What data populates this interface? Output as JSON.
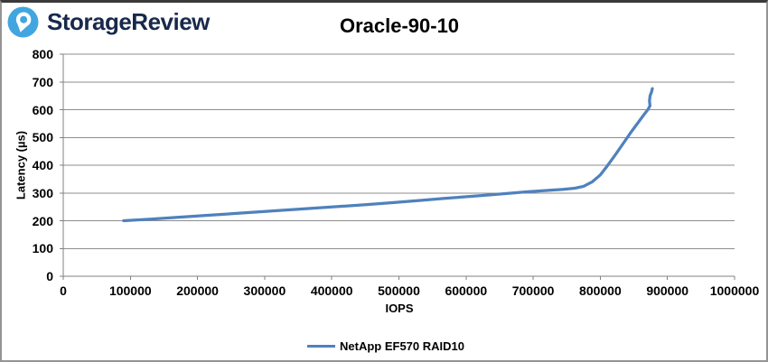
{
  "header": {
    "brand": "StorageReview",
    "brand_color": "#18294b",
    "logo_color": "#41a6e0"
  },
  "chart_data": {
    "type": "line",
    "title": "Oracle-90-10",
    "xlabel": "IOPS",
    "ylabel": "Latency (µs)",
    "xlim": [
      0,
      1000000
    ],
    "ylim": [
      0,
      800
    ],
    "x_tick_labels": [
      "0",
      "100000",
      "200000",
      "300000",
      "400000",
      "500000",
      "600000",
      "700000",
      "800000",
      "900000",
      "1000000"
    ],
    "y_tick_labels": [
      "0",
      "100",
      "200",
      "300",
      "400",
      "500",
      "600",
      "700",
      "800"
    ],
    "grid": "horizontal-on",
    "legend_position": "bottom-center",
    "series": [
      {
        "name": "NetApp EF570 RAID10",
        "color": "#4f81bd",
        "points": [
          [
            90000,
            200
          ],
          [
            130000,
            206
          ],
          [
            170000,
            212
          ],
          [
            210000,
            219
          ],
          [
            250000,
            225
          ],
          [
            290000,
            232
          ],
          [
            330000,
            238
          ],
          [
            370000,
            245
          ],
          [
            410000,
            251
          ],
          [
            450000,
            258
          ],
          [
            490000,
            265
          ],
          [
            530000,
            273
          ],
          [
            570000,
            281
          ],
          [
            610000,
            288
          ],
          [
            650000,
            296
          ],
          [
            690000,
            304
          ],
          [
            720000,
            309
          ],
          [
            745000,
            313
          ],
          [
            762000,
            317
          ],
          [
            775000,
            324
          ],
          [
            788000,
            340
          ],
          [
            800000,
            365
          ],
          [
            810000,
            396
          ],
          [
            822000,
            436
          ],
          [
            834000,
            478
          ],
          [
            846000,
            520
          ],
          [
            857000,
            556
          ],
          [
            865000,
            582
          ],
          [
            871000,
            601
          ],
          [
            874000,
            614
          ],
          [
            873200,
            632
          ],
          [
            874200,
            650
          ],
          [
            876500,
            665
          ],
          [
            877500,
            676
          ]
        ]
      }
    ],
    "colors": {
      "grid": "#8e8e8e",
      "axis": "#808080",
      "text": "#000000"
    }
  }
}
